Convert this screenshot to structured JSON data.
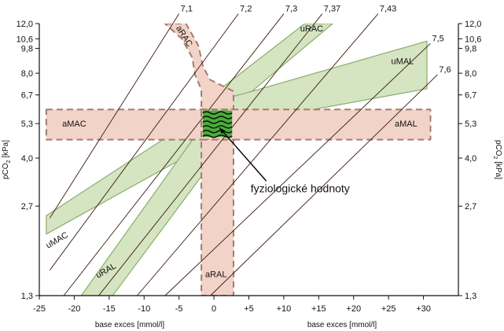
{
  "chart_data": {
    "type": "line",
    "x_axis": {
      "label": "base exces [mmol/l]",
      "range": [
        -25,
        35
      ],
      "ticks": [
        {
          "value": -25,
          "label": "-25"
        },
        {
          "value": -20,
          "label": "-20"
        },
        {
          "value": -15,
          "label": "-15"
        },
        {
          "value": -10,
          "label": "-10"
        },
        {
          "value": -5,
          "label": "-5"
        },
        {
          "value": 0,
          "label": "0"
        },
        {
          "value": 5,
          "label": "+5"
        },
        {
          "value": 10,
          "label": "+10"
        },
        {
          "value": 15,
          "label": "+15"
        },
        {
          "value": 20,
          "label": "+20"
        },
        {
          "value": 25,
          "label": "+25"
        },
        {
          "value": 30,
          "label": "+30"
        }
      ]
    },
    "y_axis": {
      "label": "pCO2 [kPa]",
      "label_main": "pCO",
      "label_sub": "2",
      "label_unit": " [kPa]",
      "scale": "log",
      "range": [
        1.3,
        12.0
      ],
      "ticks": [
        {
          "value": 1.3,
          "label": "1,3"
        },
        {
          "value": 2.7,
          "label": "2,7"
        },
        {
          "value": 4.0,
          "label": "4,0"
        },
        {
          "value": 5.3,
          "label": "5,3"
        },
        {
          "value": 6.7,
          "label": "6,7"
        },
        {
          "value": 8.0,
          "label": "8,0"
        },
        {
          "value": 9.8,
          "label": "9,8"
        },
        {
          "value": 10.6,
          "label": "10,6"
        },
        {
          "value": 12.0,
          "label": "12,0"
        }
      ]
    },
    "ph_isolines": [
      {
        "label": "7,1",
        "points": [
          [
            -23.5,
            2.45
          ],
          [
            -5,
            13.0
          ]
        ]
      },
      {
        "label": "7,2",
        "points": [
          [
            -23.5,
            1.6
          ],
          [
            3.5,
            13.0
          ]
        ]
      },
      {
        "label": "7,3",
        "points": [
          [
            -21.5,
            1.3
          ],
          [
            10,
            13.0
          ]
        ]
      },
      {
        "label": "7,37",
        "points": [
          [
            -16.5,
            1.3
          ],
          [
            15.5,
            13.0
          ]
        ]
      },
      {
        "label": "7,43",
        "points": [
          [
            -11,
            1.3
          ],
          [
            23.5,
            13.0
          ]
        ]
      },
      {
        "label": "7,5",
        "points": [
          [
            -7,
            1.3
          ],
          [
            31,
            10.2
          ]
        ]
      },
      {
        "label": "7,6",
        "points": [
          [
            -0.5,
            1.3
          ],
          [
            32,
            7.9
          ]
        ]
      }
    ],
    "regions": [
      {
        "label": "aRAC",
        "style": "acute",
        "polygon": [
          [
            -7,
            12.0
          ],
          [
            -4,
            12.0
          ],
          [
            -2.2,
            10.0
          ],
          [
            -1.6,
            8.5
          ],
          [
            -0.6,
            7.6
          ],
          [
            2.8,
            6.9
          ],
          [
            2.8,
            5.9
          ],
          [
            -1.8,
            5.9
          ],
          [
            -1.8,
            7.0
          ],
          [
            -2.7,
            7.9
          ],
          [
            -3.1,
            9.1
          ],
          [
            -4.6,
            10.6
          ]
        ]
      },
      {
        "label": "aMAC",
        "style": "acute",
        "polygon": [
          [
            -24,
            5.95
          ],
          [
            2.8,
            5.95
          ],
          [
            2.8,
            4.65
          ],
          [
            -24,
            4.65
          ]
        ]
      },
      {
        "label": "aMAL",
        "style": "acute",
        "polygon": [
          [
            -1.8,
            5.95
          ],
          [
            31,
            5.95
          ],
          [
            31,
            4.65
          ],
          [
            -1.8,
            4.65
          ]
        ]
      },
      {
        "label": "aRAL",
        "style": "acute",
        "polygon": [
          [
            -1.8,
            4.65
          ],
          [
            2.8,
            4.65
          ],
          [
            2.8,
            1.3
          ],
          [
            -1.8,
            1.3
          ]
        ]
      },
      {
        "label": "uRAC",
        "style": "compensated",
        "polygon": [
          [
            -0.5,
            6.6
          ],
          [
            4.5,
            6.6
          ],
          [
            17,
            12.0
          ],
          [
            13,
            12.0
          ]
        ]
      },
      {
        "label": "uMAL",
        "style": "compensated",
        "polygon": [
          [
            -0.5,
            6.3
          ],
          [
            5,
            6.85
          ],
          [
            30.5,
            10.4
          ],
          [
            30.5,
            7.05
          ],
          [
            8.5,
            5.6
          ],
          [
            4.5,
            5.6
          ]
        ]
      },
      {
        "label": "uMAC",
        "style": "compensated",
        "polygon": [
          [
            -24,
            2.15
          ],
          [
            -24,
            2.5
          ],
          [
            -2.8,
            5.5
          ],
          [
            2.8,
            5.1
          ],
          [
            2.8,
            4.5
          ],
          [
            -4,
            4.05
          ]
        ]
      },
      {
        "label": "uRAL",
        "style": "compensated",
        "polygon": [
          [
            -19,
            1.3
          ],
          [
            -14.5,
            1.3
          ],
          [
            2.8,
            4.9
          ],
          [
            2.8,
            5.85
          ],
          [
            -0.5,
            5.7
          ]
        ]
      }
    ],
    "region_labels": [
      {
        "text": "aRAC",
        "x": -4.2,
        "y": 10.85
      },
      {
        "text": "uRAC",
        "x": 14,
        "y": 11.55
      },
      {
        "text": "uMAL",
        "x": 27,
        "y": 8.85
      },
      {
        "text": "aMAC",
        "x": -20,
        "y": 5.3
      },
      {
        "text": "aMAL",
        "x": 27.5,
        "y": 5.3
      },
      {
        "text": "uMAC",
        "x": -22.5,
        "y": 2.05
      },
      {
        "text": "uRAL",
        "x": -15.5,
        "y": 1.6
      },
      {
        "text": "aRAL",
        "x": 0.3,
        "y": 1.55
      }
    ],
    "physiological_values": {
      "label": "fyziologické hodnoty",
      "box": {
        "x": [
          -1.6,
          2.6
        ],
        "y": [
          4.75,
          5.9
        ]
      },
      "label_position": {
        "x": 7.5,
        "y": 3.03
      },
      "arrow_tip": {
        "x": 0.8,
        "y": 5.12
      }
    },
    "colors": {
      "acute_fill": "#f2d3c8",
      "acute_stroke": "#a57b72",
      "compensated_fill": "#d5e4c1",
      "compensated_stroke": "#8aad6d",
      "physiological_fill": "#4aad3a",
      "isoline": "#3b1a0e",
      "axis": "#111111"
    }
  }
}
